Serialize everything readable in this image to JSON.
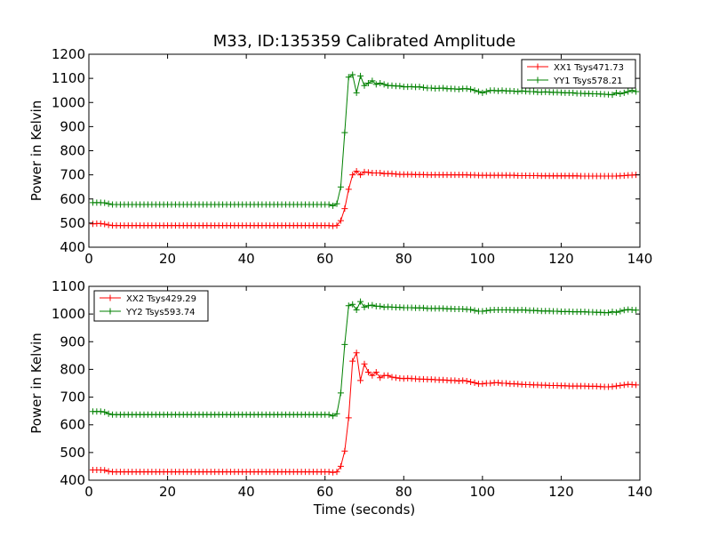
{
  "figure": {
    "title": "M33, ID:135359 Calibrated Amplitude"
  },
  "chart_data": [
    {
      "type": "line",
      "title": "M33, ID:135359 Calibrated Amplitude",
      "xlabel": "",
      "ylabel": "Power in Kelvin",
      "xlim": [
        0,
        140
      ],
      "ylim": [
        400,
        1200
      ],
      "xticks": [
        0,
        20,
        40,
        60,
        80,
        100,
        120,
        140
      ],
      "yticks": [
        400,
        500,
        600,
        700,
        800,
        900,
        1000,
        1100,
        1200
      ],
      "grid": false,
      "legend_position": "top-right",
      "marker": "+",
      "x": [
        1,
        2,
        3,
        4,
        5,
        6,
        7,
        8,
        9,
        10,
        11,
        12,
        13,
        14,
        15,
        16,
        17,
        18,
        19,
        20,
        21,
        22,
        23,
        24,
        25,
        26,
        27,
        28,
        29,
        30,
        31,
        32,
        33,
        34,
        35,
        36,
        37,
        38,
        39,
        40,
        41,
        42,
        43,
        44,
        45,
        46,
        47,
        48,
        49,
        50,
        51,
        52,
        53,
        54,
        55,
        56,
        57,
        58,
        59,
        60,
        61,
        62,
        63,
        64,
        65,
        66,
        67,
        68,
        69,
        70,
        71,
        72,
        73,
        74,
        75,
        76,
        77,
        78,
        79,
        80,
        81,
        82,
        83,
        84,
        85,
        86,
        87,
        88,
        89,
        90,
        91,
        92,
        93,
        94,
        95,
        96,
        97,
        98,
        99,
        100,
        101,
        102,
        103,
        104,
        105,
        106,
        107,
        108,
        109,
        110,
        111,
        112,
        113,
        114,
        115,
        116,
        117,
        118,
        119,
        120,
        121,
        122,
        123,
        124,
        125,
        126,
        127,
        128,
        129,
        130,
        131,
        132,
        133,
        134,
        135,
        136,
        137,
        138,
        139
      ],
      "series": [
        {
          "name": "XX1 Tsys471.73",
          "color": "#ff0000",
          "values": [
            497,
            498,
            498,
            496,
            492,
            490,
            490,
            490,
            490,
            490,
            490,
            490,
            490,
            490,
            490,
            490,
            490,
            490,
            490,
            490,
            490,
            490,
            490,
            490,
            490,
            490,
            490,
            490,
            490,
            490,
            490,
            490,
            490,
            490,
            490,
            490,
            490,
            490,
            490,
            490,
            490,
            490,
            490,
            490,
            490,
            490,
            490,
            490,
            490,
            490,
            490,
            490,
            490,
            490,
            490,
            490,
            490,
            490,
            490,
            490,
            490,
            488,
            490,
            510,
            560,
            640,
            700,
            715,
            700,
            712,
            710,
            708,
            708,
            708,
            705,
            705,
            705,
            703,
            702,
            702,
            702,
            702,
            701,
            701,
            701,
            700,
            700,
            700,
            700,
            700,
            700,
            700,
            700,
            700,
            700,
            700,
            699,
            699,
            698,
            698,
            698,
            698,
            698,
            698,
            698,
            698,
            698,
            698,
            697,
            697,
            697,
            697,
            697,
            697,
            696,
            696,
            696,
            696,
            696,
            696,
            696,
            696,
            696,
            696,
            695,
            695,
            695,
            695,
            695,
            695,
            695,
            695,
            695,
            695,
            696,
            697,
            698,
            699,
            700
          ]
        },
        {
          "name": "YY1 Tsys578.21",
          "color": "#008000",
          "values": [
            585,
            585,
            585,
            584,
            580,
            577,
            577,
            577,
            577,
            577,
            577,
            577,
            577,
            577,
            577,
            577,
            577,
            577,
            577,
            577,
            577,
            577,
            577,
            577,
            577,
            577,
            577,
            577,
            577,
            577,
            577,
            577,
            577,
            577,
            577,
            577,
            577,
            577,
            577,
            577,
            577,
            577,
            577,
            577,
            577,
            577,
            577,
            577,
            577,
            577,
            577,
            577,
            577,
            577,
            577,
            577,
            577,
            577,
            577,
            577,
            577,
            572,
            580,
            650,
            875,
            1105,
            1115,
            1040,
            1110,
            1070,
            1080,
            1090,
            1075,
            1080,
            1075,
            1070,
            1070,
            1068,
            1068,
            1065,
            1065,
            1066,
            1064,
            1065,
            1062,
            1060,
            1060,
            1058,
            1059,
            1060,
            1057,
            1057,
            1056,
            1055,
            1057,
            1057,
            1055,
            1050,
            1045,
            1040,
            1045,
            1050,
            1050,
            1048,
            1050,
            1048,
            1048,
            1047,
            1045,
            1048,
            1046,
            1045,
            1045,
            1043,
            1043,
            1044,
            1043,
            1042,
            1042,
            1041,
            1040,
            1040,
            1040,
            1038,
            1038,
            1037,
            1037,
            1036,
            1036,
            1035,
            1034,
            1033,
            1032,
            1040,
            1036,
            1040,
            1045,
            1050,
            1045
          ]
        }
      ]
    },
    {
      "type": "line",
      "title": "",
      "xlabel": "Time (seconds)",
      "ylabel": "Power in Kelvin",
      "xlim": [
        0,
        140
      ],
      "ylim": [
        400,
        1100
      ],
      "xticks": [
        0,
        20,
        40,
        60,
        80,
        100,
        120,
        140
      ],
      "yticks": [
        400,
        500,
        600,
        700,
        800,
        900,
        1000,
        1100
      ],
      "grid": false,
      "legend_position": "top-left",
      "marker": "+",
      "x": [
        1,
        2,
        3,
        4,
        5,
        6,
        7,
        8,
        9,
        10,
        11,
        12,
        13,
        14,
        15,
        16,
        17,
        18,
        19,
        20,
        21,
        22,
        23,
        24,
        25,
        26,
        27,
        28,
        29,
        30,
        31,
        32,
        33,
        34,
        35,
        36,
        37,
        38,
        39,
        40,
        41,
        42,
        43,
        44,
        45,
        46,
        47,
        48,
        49,
        50,
        51,
        52,
        53,
        54,
        55,
        56,
        57,
        58,
        59,
        60,
        61,
        62,
        63,
        64,
        65,
        66,
        67,
        68,
        69,
        70,
        71,
        72,
        73,
        74,
        75,
        76,
        77,
        78,
        79,
        80,
        81,
        82,
        83,
        84,
        85,
        86,
        87,
        88,
        89,
        90,
        91,
        92,
        93,
        94,
        95,
        96,
        97,
        98,
        99,
        100,
        101,
        102,
        103,
        104,
        105,
        106,
        107,
        108,
        109,
        110,
        111,
        112,
        113,
        114,
        115,
        116,
        117,
        118,
        119,
        120,
        121,
        122,
        123,
        124,
        125,
        126,
        127,
        128,
        129,
        130,
        131,
        132,
        133,
        134,
        135,
        136,
        137,
        138,
        139
      ],
      "series": [
        {
          "name": "XX2 Tsys429.29",
          "color": "#ff0000",
          "values": [
            437,
            437,
            437,
            436,
            432,
            430,
            430,
            430,
            430,
            430,
            430,
            430,
            430,
            430,
            430,
            430,
            430,
            430,
            430,
            430,
            430,
            430,
            430,
            430,
            430,
            430,
            430,
            430,
            430,
            430,
            430,
            430,
            430,
            430,
            430,
            430,
            430,
            430,
            430,
            430,
            430,
            430,
            430,
            430,
            430,
            430,
            430,
            430,
            430,
            430,
            430,
            430,
            430,
            430,
            430,
            430,
            430,
            430,
            430,
            430,
            430,
            428,
            430,
            450,
            505,
            625,
            830,
            860,
            760,
            820,
            790,
            778,
            790,
            770,
            778,
            778,
            772,
            770,
            768,
            767,
            768,
            767,
            766,
            765,
            765,
            764,
            764,
            763,
            762,
            762,
            761,
            760,
            760,
            758,
            760,
            758,
            755,
            752,
            748,
            748,
            750,
            750,
            752,
            752,
            750,
            750,
            748,
            748,
            747,
            746,
            745,
            745,
            744,
            744,
            743,
            743,
            742,
            742,
            742,
            741,
            741,
            740,
            740,
            740,
            740,
            740,
            739,
            739,
            739,
            738,
            737,
            737,
            738,
            740,
            742,
            744,
            746,
            745,
            744
          ]
        },
        {
          "name": "YY2 Tsys593.74",
          "color": "#008000",
          "values": [
            648,
            648,
            648,
            646,
            640,
            637,
            637,
            637,
            637,
            637,
            637,
            637,
            637,
            637,
            637,
            637,
            637,
            637,
            637,
            637,
            637,
            637,
            637,
            637,
            637,
            637,
            637,
            637,
            637,
            637,
            637,
            637,
            637,
            637,
            637,
            637,
            637,
            637,
            637,
            637,
            637,
            637,
            637,
            637,
            637,
            637,
            637,
            637,
            637,
            637,
            637,
            637,
            637,
            637,
            637,
            637,
            637,
            637,
            637,
            637,
            637,
            632,
            640,
            715,
            890,
            1030,
            1035,
            1015,
            1045,
            1025,
            1030,
            1032,
            1028,
            1028,
            1025,
            1026,
            1025,
            1024,
            1024,
            1023,
            1023,
            1023,
            1022,
            1022,
            1022,
            1020,
            1020,
            1020,
            1020,
            1020,
            1019,
            1019,
            1018,
            1018,
            1018,
            1017,
            1016,
            1013,
            1010,
            1010,
            1012,
            1014,
            1015,
            1015,
            1015,
            1015,
            1015,
            1014,
            1014,
            1015,
            1014,
            1013,
            1013,
            1012,
            1011,
            1011,
            1011,
            1010,
            1010,
            1009,
            1009,
            1009,
            1008,
            1008,
            1008,
            1008,
            1007,
            1007,
            1006,
            1006,
            1005,
            1005,
            1008,
            1006,
            1010,
            1014,
            1016,
            1015,
            1014
          ]
        }
      ]
    }
  ]
}
